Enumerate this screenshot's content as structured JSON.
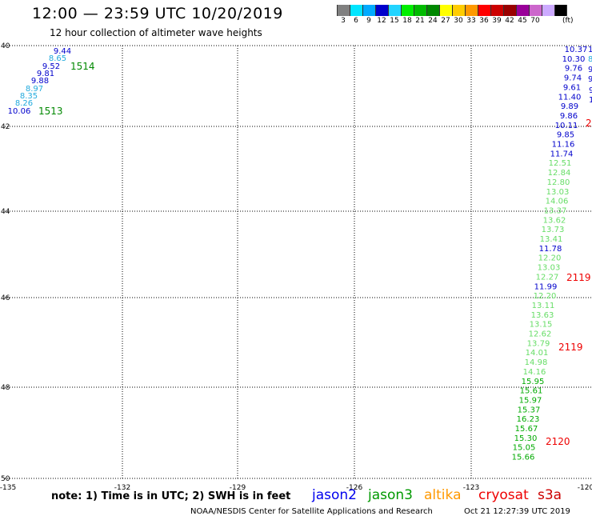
{
  "header": {
    "title": "12:00 — 23:59 UTC 10/20/2019",
    "subtitle": "12 hour collection of altimeter wave heights"
  },
  "legend": {
    "colors": [
      "#808080",
      "#00e5ff",
      "#00aaff",
      "#0000cc",
      "#22d4ff",
      "#00ee00",
      "#00bb00",
      "#008800",
      "#ffff00",
      "#ffcc00",
      "#ff9900",
      "#ff0000",
      "#cc0000",
      "#990000",
      "#990099",
      "#cc66cc",
      "#ccaaff",
      "#000000"
    ],
    "labels": [
      "3",
      "6",
      "9",
      "12",
      "15",
      "18",
      "21",
      "24",
      "27",
      "30",
      "33",
      "36",
      "39",
      "42",
      "45",
      "70"
    ],
    "unit": "(ft)"
  },
  "footer": {
    "note": "note: 1) Time is in UTC; 2) SWH is in feet",
    "satellites": [
      {
        "name": "jason2",
        "color": "#0000ee"
      },
      {
        "name": "jason3",
        "color": "#009900"
      },
      {
        "name": "altika",
        "color": "#ff9900"
      },
      {
        "name": "cryosat",
        "color": "#ee0000"
      },
      {
        "name": "s3a",
        "color": "#cc0000"
      }
    ],
    "credit": "NOAA/NESDIS Center for Satellite Applications and Research",
    "timestamp": "Oct 21 12:27:39 UTC 2019"
  },
  "map": {
    "lon_ticks": [
      "-135",
      "-132",
      "-129",
      "-126",
      "-123",
      "-120"
    ],
    "lat_ticks": [
      "40",
      "42",
      "44",
      "46",
      "48",
      "50"
    ]
  },
  "tracks": {
    "nw_track": {
      "color": "#0000cc",
      "light_color": "#22aadd",
      "values": [
        {
          "v": "9.44",
          "c": "dark"
        },
        {
          "v": "8.65",
          "c": "light"
        },
        {
          "v": "9.52",
          "c": "dark"
        },
        {
          "v": "9.81",
          "c": "dark"
        },
        {
          "v": "9.88",
          "c": "dark"
        },
        {
          "v": "8.97",
          "c": "light"
        },
        {
          "v": "8.35",
          "c": "light"
        },
        {
          "v": "8.26",
          "c": "light"
        },
        {
          "v": "10.06",
          "c": "dark"
        }
      ],
      "time_labels": [
        "1514",
        "1513"
      ],
      "time_color": "#008800"
    },
    "east_track": {
      "values": [
        {
          "v": "10.37",
          "c": "dark"
        },
        {
          "v": "10.30",
          "c": "dark"
        },
        {
          "v": "9.76",
          "c": "dark"
        },
        {
          "v": "9.74",
          "c": "dark"
        },
        {
          "v": "9.61",
          "c": "dark"
        },
        {
          "v": "11.40",
          "c": "dark"
        },
        {
          "v": "9.89",
          "c": "dark"
        },
        {
          "v": "9.86",
          "c": "dark"
        },
        {
          "v": "10.11",
          "c": "dark"
        },
        {
          "v": "9.85",
          "c": "dark"
        },
        {
          "v": "11.16",
          "c": "dark"
        },
        {
          "v": "11.74",
          "c": "dark"
        },
        {
          "v": "12.51",
          "c": "light"
        },
        {
          "v": "12.84",
          "c": "light"
        },
        {
          "v": "12.80",
          "c": "light"
        },
        {
          "v": "13.03",
          "c": "light"
        },
        {
          "v": "14.06",
          "c": "light"
        },
        {
          "v": "13.37",
          "c": "light"
        },
        {
          "v": "13.62",
          "c": "light"
        },
        {
          "v": "13.73",
          "c": "light"
        },
        {
          "v": "13.41",
          "c": "light"
        },
        {
          "v": "11.78",
          "c": "dark"
        },
        {
          "v": "12.20",
          "c": "light"
        },
        {
          "v": "13.03",
          "c": "light"
        },
        {
          "v": "12.27",
          "c": "light"
        },
        {
          "v": "11.99",
          "c": "dark"
        },
        {
          "v": "12.20",
          "c": "light"
        },
        {
          "v": "13.11",
          "c": "light"
        },
        {
          "v": "13.63",
          "c": "light"
        },
        {
          "v": "13.15",
          "c": "light"
        },
        {
          "v": "12.62",
          "c": "light"
        },
        {
          "v": "13.79",
          "c": "light"
        },
        {
          "v": "14.01",
          "c": "light"
        },
        {
          "v": "14.98",
          "c": "light"
        },
        {
          "v": "14.16",
          "c": "light"
        },
        {
          "v": "15.95",
          "c": "green"
        },
        {
          "v": "15.61",
          "c": "green"
        },
        {
          "v": "15.97",
          "c": "green"
        },
        {
          "v": "15.37",
          "c": "green"
        },
        {
          "v": "16.23",
          "c": "green"
        },
        {
          "v": "15.67",
          "c": "green"
        },
        {
          "v": "15.30",
          "c": "green"
        },
        {
          "v": "15.05",
          "c": "green"
        },
        {
          "v": "15.66",
          "c": "green"
        }
      ],
      "time_labels": [
        "2119",
        "2119",
        "2120"
      ],
      "time_color": "#ee0000",
      "edge_values": [
        "10.3",
        "8.6",
        "9.1",
        "9.",
        "9",
        "1"
      ]
    }
  }
}
